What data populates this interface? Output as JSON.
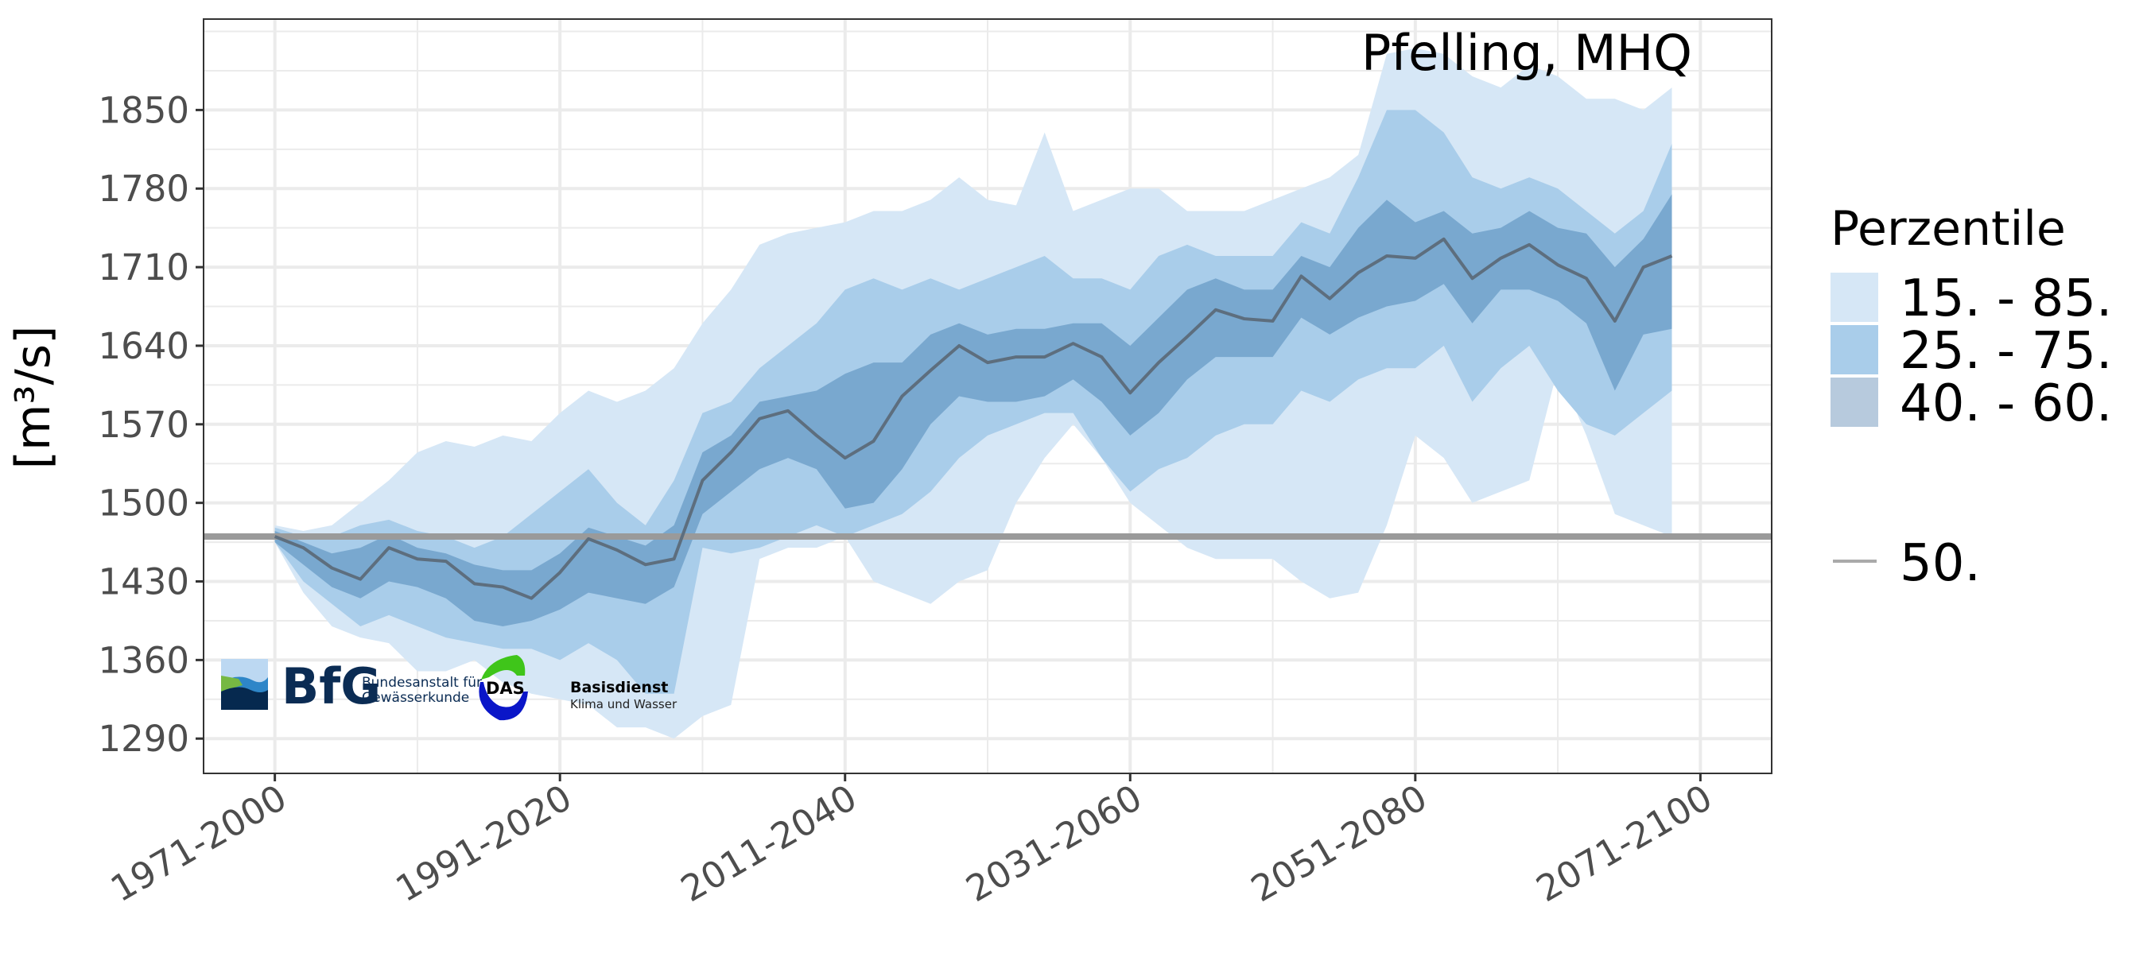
{
  "chart_data": {
    "type": "area",
    "title": "Pfelling, MHQ",
    "xlabel": "",
    "ylabel": "[m³/s]",
    "ylim": [
      1259,
      1931
    ],
    "grid": true,
    "legend_placement": "right",
    "legend_title": "Perzentile",
    "y_ticks": [
      1290,
      1360,
      1430,
      1500,
      1570,
      1640,
      1710,
      1780,
      1850
    ],
    "x_ticks": [
      1971,
      1991,
      2011,
      2031,
      2051,
      2071
    ],
    "x_tick_labels": [
      "1971-2000",
      "1991-2020",
      "2011-2040",
      "2031-2060",
      "2051-2080",
      "2071-2100"
    ],
    "x_lim": [
      1966,
      2076
    ],
    "x": [
      1971,
      1973,
      1975,
      1977,
      1979,
      1981,
      1983,
      1985,
      1987,
      1989,
      1991,
      1993,
      1995,
      1997,
      1999,
      2001,
      2003,
      2005,
      2007,
      2009,
      2011,
      2013,
      2015,
      2017,
      2019,
      2021,
      2023,
      2025,
      2027,
      2029,
      2031,
      2033,
      2035,
      2037,
      2039,
      2041,
      2043,
      2045,
      2047,
      2049,
      2051,
      2053,
      2055,
      2057,
      2059,
      2061,
      2063,
      2065,
      2067,
      2069
    ],
    "bands": [
      {
        "name": "15. - 85.",
        "color": "#d6e7f6",
        "upper": [
          1480,
          1475,
          1480,
          1500,
          1520,
          1545,
          1555,
          1550,
          1560,
          1555,
          1580,
          1600,
          1590,
          1600,
          1620,
          1660,
          1690,
          1730,
          1740,
          1745,
          1750,
          1760,
          1760,
          1770,
          1790,
          1770,
          1765,
          1830,
          1760,
          1770,
          1780,
          1780,
          1760,
          1760,
          1760,
          1770,
          1780,
          1790,
          1810,
          1900,
          1905,
          1900,
          1880,
          1870,
          1890,
          1880,
          1860,
          1860,
          1850,
          1870
        ],
        "lower": [
          1465,
          1420,
          1390,
          1380,
          1375,
          1350,
          1350,
          1360,
          1340,
          1330,
          1325,
          1320,
          1300,
          1300,
          1290,
          1310,
          1320,
          1450,
          1460,
          1460,
          1470,
          1430,
          1420,
          1410,
          1430,
          1440,
          1500,
          1540,
          1570,
          1540,
          1500,
          1480,
          1460,
          1450,
          1450,
          1450,
          1430,
          1415,
          1420,
          1480,
          1560,
          1540,
          1500,
          1510,
          1520,
          1620,
          1560,
          1490,
          1480,
          1470
        ]
      },
      {
        "name": "25. - 75.",
        "color": "#a9cdea",
        "upper": [
          1478,
          1470,
          1470,
          1480,
          1485,
          1475,
          1470,
          1460,
          1470,
          1490,
          1510,
          1530,
          1500,
          1480,
          1520,
          1580,
          1590,
          1620,
          1640,
          1660,
          1690,
          1700,
          1690,
          1700,
          1690,
          1700,
          1710,
          1720,
          1700,
          1700,
          1690,
          1720,
          1730,
          1720,
          1720,
          1720,
          1750,
          1740,
          1790,
          1850,
          1850,
          1830,
          1790,
          1780,
          1790,
          1780,
          1760,
          1740,
          1760,
          1820
        ],
        "lower": [
          1465,
          1430,
          1410,
          1390,
          1400,
          1390,
          1380,
          1375,
          1370,
          1370,
          1360,
          1375,
          1360,
          1330,
          1330,
          1460,
          1455,
          1460,
          1470,
          1480,
          1470,
          1480,
          1490,
          1510,
          1540,
          1560,
          1570,
          1580,
          1580,
          1540,
          1510,
          1530,
          1540,
          1560,
          1570,
          1570,
          1600,
          1590,
          1610,
          1620,
          1620,
          1640,
          1590,
          1620,
          1640,
          1600,
          1570,
          1560,
          1580,
          1600
        ]
      },
      {
        "name": "40. - 60.",
        "color": "#79a8cf",
        "legend_color": "#b7cadd",
        "upper": [
          1475,
          1465,
          1455,
          1460,
          1472,
          1460,
          1455,
          1445,
          1440,
          1440,
          1455,
          1478,
          1470,
          1462,
          1480,
          1545,
          1560,
          1590,
          1595,
          1600,
          1615,
          1625,
          1625,
          1650,
          1660,
          1650,
          1655,
          1655,
          1660,
          1660,
          1640,
          1665,
          1690,
          1700,
          1690,
          1690,
          1720,
          1710,
          1745,
          1770,
          1750,
          1760,
          1740,
          1745,
          1760,
          1745,
          1740,
          1710,
          1735,
          1775
        ],
        "lower": [
          1465,
          1445,
          1425,
          1415,
          1430,
          1425,
          1415,
          1395,
          1390,
          1395,
          1405,
          1420,
          1415,
          1410,
          1425,
          1490,
          1510,
          1530,
          1540,
          1530,
          1495,
          1500,
          1530,
          1570,
          1595,
          1590,
          1590,
          1595,
          1610,
          1590,
          1560,
          1580,
          1610,
          1630,
          1630,
          1630,
          1665,
          1650,
          1665,
          1675,
          1680,
          1695,
          1660,
          1690,
          1690,
          1680,
          1660,
          1600,
          1650,
          1655
        ]
      }
    ],
    "series": [
      {
        "name": "50.",
        "color": "#5d6e7e",
        "values": [
          1470,
          1460,
          1442,
          1432,
          1460,
          1450,
          1448,
          1428,
          1425,
          1415,
          1438,
          1468,
          1458,
          1445,
          1450,
          1520,
          1545,
          1575,
          1582,
          1560,
          1540,
          1555,
          1595,
          1618,
          1640,
          1625,
          1630,
          1630,
          1642,
          1630,
          1598,
          1625,
          1648,
          1672,
          1664,
          1662,
          1702,
          1682,
          1705,
          1720,
          1718,
          1735,
          1700,
          1718,
          1730,
          1712,
          1700,
          1662,
          1710,
          1720
        ]
      }
    ],
    "reference_line": {
      "label": "50.",
      "value": 1470,
      "color": "#9a9a9a"
    }
  },
  "logos": {
    "bfg": {
      "mark": "BfG",
      "line1": "Bundesanstalt für",
      "line2": "Gewässerkunde"
    },
    "das": {
      "mark": "DAS",
      "line1": "Basisdienst",
      "line2": "Klima und Wasser"
    }
  }
}
